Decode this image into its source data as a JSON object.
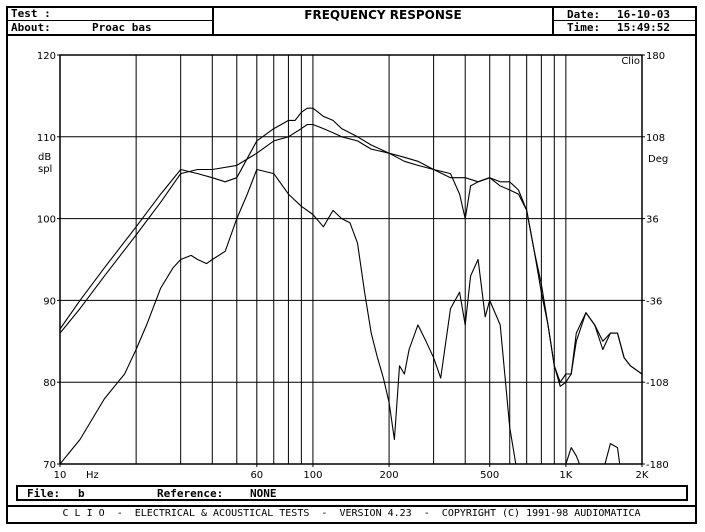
{
  "header": {
    "test_label": "Test :",
    "test_value": "",
    "about_label": "About:",
    "about_value": "Proac bas",
    "title": "FREQUENCY RESPONSE",
    "date_label": "Date:",
    "date_value": "16-10-03",
    "time_label": "Time:",
    "time_value": "15:49:52"
  },
  "footer": {
    "file_label": "File:",
    "file_value": "b",
    "reference_label": "Reference:",
    "reference_value": "NONE",
    "status_line": "C L I O  -  ELECTRICAL & ACOUSTICAL TESTS  -  VERSION 4.23  -  COPYRIGHT (C) 1991-98 AUDIOMATICA"
  },
  "chart_data": {
    "type": "line",
    "xscale": "log",
    "xlim": [
      10,
      2000
    ],
    "ylim": [
      70,
      120
    ],
    "y2lim": [
      -180,
      180
    ],
    "x_ticks": [
      {
        "value": 10,
        "label": "10"
      },
      {
        "value": 60,
        "label": "60"
      },
      {
        "value": 100,
        "label": "100"
      },
      {
        "value": 200,
        "label": "200"
      },
      {
        "value": 500,
        "label": "500"
      },
      {
        "value": 1000,
        "label": "1K"
      },
      {
        "value": 2000,
        "label": "2K"
      }
    ],
    "x_unit": "Hz",
    "y_ticks": [
      70,
      80,
      90,
      100,
      110,
      120
    ],
    "ylabel_lines": [
      "dB",
      "spl"
    ],
    "y2_ticks": [
      {
        "value": -180,
        "label": "-180"
      },
      {
        "value": -108,
        "label": "-108"
      },
      {
        "value": -36,
        "label": "-36"
      },
      {
        "value": 36,
        "label": "36"
      },
      {
        "value": 108,
        "label": "108"
      },
      {
        "value": 180,
        "label": "180"
      }
    ],
    "y2label": "Deg",
    "corner_label": "Clio",
    "grid": true,
    "series": [
      {
        "axis": "left",
        "x": [
          10,
          12,
          15,
          20,
          25,
          30,
          35,
          40,
          50,
          60,
          70,
          80,
          90,
          95,
          100,
          110,
          120,
          130,
          150,
          170,
          200,
          230,
          260,
          300,
          350,
          400,
          450,
          500,
          550,
          600,
          650,
          700,
          750,
          800,
          850,
          900,
          950,
          1000,
          1050,
          1100,
          1200,
          1300,
          1400,
          1500,
          1600,
          1700,
          1800,
          2000
        ],
        "y": [
          86,
          89,
          93,
          98,
          102,
          105.5,
          106,
          106,
          106.5,
          108,
          109.5,
          110,
          111,
          111.5,
          111.5,
          111,
          110.5,
          110,
          109.5,
          108.5,
          108,
          107,
          106.5,
          106,
          105,
          105,
          104.5,
          105,
          104.5,
          104.5,
          103.5,
          101,
          96,
          92,
          87,
          82,
          79.5,
          80,
          81,
          86,
          88.5,
          87,
          85,
          86,
          86,
          83,
          82,
          81
        ]
      },
      {
        "axis": "left",
        "x": [
          10,
          12,
          15,
          20,
          25,
          30,
          35,
          40,
          45,
          50,
          60,
          70,
          75,
          80,
          85,
          90,
          95,
          100,
          105,
          110,
          120,
          130,
          150,
          170,
          200,
          230,
          260,
          300,
          350,
          380,
          400,
          420,
          450,
          500,
          550,
          600,
          650,
          700,
          750,
          800,
          850,
          900,
          950,
          1000,
          1050,
          1100,
          1200,
          1300,
          1400,
          1500,
          1600,
          1700,
          1800,
          2000
        ],
        "y": [
          86.5,
          90,
          94,
          99,
          103,
          106,
          105.5,
          105,
          104.5,
          105,
          109.5,
          111,
          111.5,
          112,
          112,
          113,
          113.5,
          113.5,
          113,
          112.5,
          112,
          111,
          110,
          109,
          108,
          107.5,
          107,
          106,
          105.5,
          103,
          100,
          104,
          104.5,
          105,
          104,
          103.5,
          103,
          101,
          96,
          91,
          87,
          82,
          80,
          81,
          81,
          85,
          88.5,
          87,
          84,
          86,
          86,
          83,
          82,
          81
        ]
      },
      {
        "axis": "left",
        "x": [
          10,
          12,
          15,
          18,
          20,
          22,
          25,
          28,
          30,
          33,
          35,
          38,
          40,
          45,
          50,
          55,
          60,
          70,
          80,
          90,
          100,
          110,
          120,
          130,
          140,
          150,
          160,
          170,
          180,
          190,
          200,
          210,
          220,
          230,
          240,
          260,
          280,
          300,
          320,
          350,
          380,
          400,
          420,
          450,
          480,
          500,
          550,
          600,
          650,
          700,
          750,
          800,
          850,
          900,
          950,
          1000,
          1050,
          1100,
          1200,
          1300,
          1400,
          1500,
          1600,
          1700,
          1800,
          2000
        ],
        "y": [
          70,
          73,
          78,
          81,
          84,
          87,
          91.5,
          94,
          95,
          95.5,
          95,
          94.5,
          95,
          96,
          100,
          103,
          106,
          105.5,
          103,
          101.5,
          100.5,
          99,
          101,
          100,
          99.5,
          97,
          91,
          86,
          83,
          80.5,
          77.5,
          73,
          82,
          81,
          84,
          87,
          85,
          83,
          80.5,
          89,
          91,
          87,
          93,
          95,
          88,
          90,
          87,
          74.5,
          68,
          64,
          67,
          69,
          68.5,
          66,
          67,
          70,
          72,
          71,
          68,
          66,
          69,
          72.5,
          72,
          66,
          68,
          70
        ]
      }
    ]
  }
}
